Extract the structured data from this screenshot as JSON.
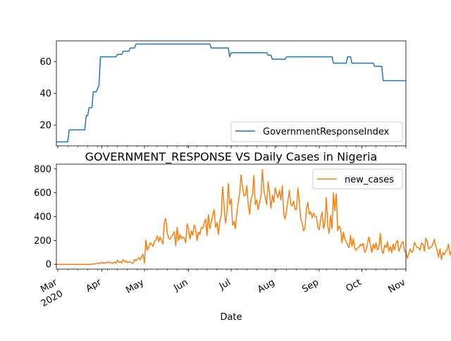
{
  "chart_data": [
    {
      "type": "line",
      "title": "",
      "xlabel": "",
      "ylabel": "",
      "yticks": [
        20,
        40,
        60
      ],
      "ylim": [
        7,
        73
      ],
      "xlim": [
        "2020-02-29",
        "2020-11-01"
      ],
      "legend": {
        "entries": [
          "GovernmentResponseIndex"
        ],
        "position": "lower-right"
      },
      "grid": false,
      "series": [
        {
          "name": "GovernmentResponseIndex",
          "color": "#1f77b4",
          "points": [
            [
              "2020-02-29",
              9.5
            ],
            [
              "2020-03-08",
              9.5
            ],
            [
              "2020-03-09",
              17
            ],
            [
              "2020-03-20",
              17
            ],
            [
              "2020-03-21",
              26
            ],
            [
              "2020-03-22",
              26
            ],
            [
              "2020-03-23",
              31
            ],
            [
              "2020-03-25",
              31
            ],
            [
              "2020-03-26",
              41
            ],
            [
              "2020-03-28",
              41
            ],
            [
              "2020-03-29",
              43
            ],
            [
              "2020-03-30",
              45
            ],
            [
              "2020-03-31",
              63
            ],
            [
              "2020-04-11",
              63
            ],
            [
              "2020-04-12",
              64.5
            ],
            [
              "2020-04-15",
              64.5
            ],
            [
              "2020-04-16",
              66.5
            ],
            [
              "2020-04-20",
              66.5
            ],
            [
              "2020-04-21",
              68.5
            ],
            [
              "2020-04-24",
              68.5
            ],
            [
              "2020-04-25",
              71
            ],
            [
              "2020-06-16",
              71
            ],
            [
              "2020-06-17",
              68.5
            ],
            [
              "2020-06-29",
              68.5
            ],
            [
              "2020-06-30",
              63
            ],
            [
              "2020-07-01",
              65.5
            ],
            [
              "2020-07-26",
              65.5
            ],
            [
              "2020-07-27",
              64
            ],
            [
              "2020-07-29",
              64
            ],
            [
              "2020-07-30",
              61.5
            ],
            [
              "2020-08-08",
              61.5
            ],
            [
              "2020-08-09",
              63
            ],
            [
              "2020-09-10",
              63
            ],
            [
              "2020-09-11",
              59
            ],
            [
              "2020-09-20",
              59
            ],
            [
              "2020-09-21",
              63
            ],
            [
              "2020-09-23",
              63
            ],
            [
              "2020-09-24",
              59
            ],
            [
              "2020-10-09",
              59
            ],
            [
              "2020-10-10",
              57
            ],
            [
              "2020-10-15",
              57
            ],
            [
              "2020-10-16",
              48
            ],
            [
              "2020-11-01",
              48
            ]
          ]
        }
      ]
    },
    {
      "type": "line",
      "title": "GOVERNMENT_RESPONSE VS Daily Cases in Nigeria",
      "xlabel": "Date",
      "ylabel": "",
      "yticks": [
        0,
        200,
        400,
        600,
        800
      ],
      "ylim": [
        -40,
        840
      ],
      "xlim": [
        "2020-02-29",
        "2020-11-01"
      ],
      "xticks": [
        {
          "date": "2020-03-01",
          "label": "Mar",
          "sublabel": "2020"
        },
        {
          "date": "2020-04-01",
          "label": "Apr"
        },
        {
          "date": "2020-05-01",
          "label": "May"
        },
        {
          "date": "2020-06-01",
          "label": "Jun"
        },
        {
          "date": "2020-07-01",
          "label": "Jul"
        },
        {
          "date": "2020-08-01",
          "label": "Aug"
        },
        {
          "date": "2020-09-01",
          "label": "Sep"
        },
        {
          "date": "2020-10-01",
          "label": "Oct"
        },
        {
          "date": "2020-11-01",
          "label": "Nov"
        }
      ],
      "legend": {
        "entries": [
          "new_cases"
        ],
        "position": "upper-right"
      },
      "grid": false,
      "series": [
        {
          "name": "new_cases",
          "color": "#ff7f0e",
          "start_date": "2020-02-29",
          "values": [
            0,
            0,
            0,
            0,
            0,
            0,
            0,
            0,
            0,
            0,
            0,
            0,
            0,
            0,
            0,
            0,
            0,
            0,
            0,
            0,
            0,
            0,
            0,
            0,
            0,
            0,
            5,
            3,
            8,
            10,
            5,
            12,
            18,
            8,
            15,
            10,
            20,
            18,
            12,
            15,
            8,
            20,
            10,
            35,
            15,
            25,
            12,
            40,
            20,
            30,
            15,
            22,
            18,
            14,
            8,
            42,
            30,
            45,
            55,
            38,
            65,
            85,
            10,
            205,
            120,
            140,
            180,
            170,
            150,
            195,
            200,
            240,
            190,
            230,
            200,
            170,
            360,
            385,
            265,
            220,
            210,
            235,
            250,
            275,
            155,
            310,
            200,
            250,
            215,
            230,
            220,
            180,
            340,
            295,
            210,
            280,
            245,
            330,
            300,
            200,
            270,
            250,
            310,
            300,
            345,
            380,
            240,
            420,
            300,
            350,
            410,
            460,
            310,
            350,
            250,
            360,
            410,
            650,
            500,
            345,
            425,
            680,
            500,
            550,
            330,
            360,
            300,
            430,
            520,
            600,
            750,
            650,
            575,
            580,
            660,
            500,
            420,
            550,
            580,
            745,
            500,
            540,
            460,
            520,
            580,
            795,
            620,
            560,
            500,
            690,
            600,
            470,
            580,
            520,
            640,
            590,
            560,
            620,
            540,
            660,
            420,
            380,
            450,
            540,
            620,
            500,
            490,
            530,
            460,
            460,
            640,
            520,
            380,
            350,
            280,
            310,
            470,
            520,
            420,
            440,
            390,
            430,
            400,
            400,
            310,
            290,
            380,
            440,
            300,
            350,
            560,
            320,
            260,
            410,
            300,
            600,
            450,
            590,
            280,
            320,
            300,
            180,
            270,
            210,
            190,
            160,
            140,
            245,
            150,
            215,
            130,
            120,
            140,
            145,
            170,
            155,
            175,
            100,
            120,
            180,
            230,
            160,
            100,
            170,
            130,
            180,
            120,
            140,
            260,
            120,
            90,
            160,
            140,
            190,
            110,
            150,
            100,
            170,
            120,
            180,
            200,
            110,
            140,
            180,
            190,
            110,
            105,
            50,
            90,
            130,
            100,
            110,
            185,
            160,
            140,
            140,
            120,
            180,
            170,
            110,
            220,
            190,
            130,
            140,
            150,
            170,
            210,
            155,
            115,
            60,
            130,
            40,
            100,
            80,
            110,
            120,
            170,
            80,
            110,
            130,
            150,
            160,
            170,
            145,
            110
          ]
        }
      ]
    }
  ]
}
